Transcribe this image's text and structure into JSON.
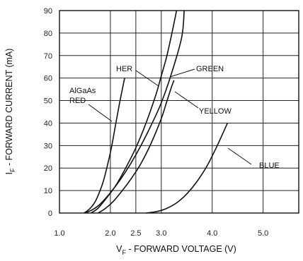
{
  "chart_data": {
    "type": "line",
    "xlabel": {
      "main": "V",
      "sub": "F",
      "rest": " - FORWARD VOLTAGE (V)"
    },
    "ylabel": {
      "main": "I",
      "sub": "F",
      "rest": " - FORWARD CURRENT (mA)"
    },
    "xlim": [
      1.0,
      5.7
    ],
    "ylim": [
      0,
      90
    ],
    "x_ticks": [
      {
        "value": 1.0,
        "label": "1.0"
      },
      {
        "value": 2.0,
        "label": "2.0"
      },
      {
        "value": 2.5,
        "label": "2.5"
      },
      {
        "value": 3.0,
        "label": "3.0"
      },
      {
        "value": 4.0,
        "label": "4.0"
      },
      {
        "value": 5.0,
        "label": "5.0"
      }
    ],
    "y_ticks": [
      0,
      10,
      20,
      30,
      40,
      50,
      60,
      70,
      80,
      90
    ],
    "series": [
      {
        "name": "AlGaAs RED",
        "x": [
          1.48,
          1.55,
          1.62,
          1.7,
          1.78,
          1.86,
          1.94,
          2.02,
          2.1,
          2.19,
          2.28
        ],
        "y": [
          0,
          1,
          2.5,
          5,
          9,
          14,
          21,
          29,
          39,
          50,
          60
        ]
      },
      {
        "name": "HER",
        "x": [
          1.5,
          1.65,
          1.8,
          2.0,
          2.2,
          2.4,
          2.6,
          2.8,
          3.0,
          3.2,
          3.4,
          3.45
        ],
        "y": [
          0,
          1.5,
          4,
          9,
          15,
          22,
          30,
          39,
          49,
          62,
          78,
          90
        ]
      },
      {
        "name": "GREEN",
        "x": [
          1.62,
          1.75,
          1.9,
          2.1,
          2.3,
          2.5,
          2.7,
          2.9,
          3.0,
          3.1,
          3.2,
          3.3
        ],
        "y": [
          0,
          2,
          6,
          12,
          20,
          29,
          40,
          53,
          61,
          69,
          79,
          90
        ]
      },
      {
        "name": "YELLOW",
        "x": [
          1.76,
          1.9,
          2.05,
          2.2,
          2.4,
          2.6,
          2.8,
          3.0,
          3.1,
          3.2,
          3.25
        ],
        "y": [
          0,
          2,
          5,
          9,
          15,
          22,
          31,
          42,
          49,
          56,
          59
        ]
      },
      {
        "name": "BLUE",
        "x": [
          2.7,
          2.9,
          3.1,
          3.3,
          3.5,
          3.7,
          3.9,
          4.1,
          4.3
        ],
        "y": [
          0,
          0.6,
          2,
          4.5,
          8.5,
          14,
          21,
          30,
          40
        ]
      }
    ],
    "annotations": [
      {
        "series": "AlGaAs RED",
        "lines": [
          "AlGaAs",
          "RED"
        ]
      },
      {
        "series": "HER",
        "lines": [
          "HER"
        ]
      },
      {
        "series": "GREEN",
        "lines": [
          "GREEN"
        ]
      },
      {
        "series": "YELLOW",
        "lines": [
          "YELLOW"
        ]
      },
      {
        "series": "BLUE",
        "lines": [
          "BLUE"
        ]
      }
    ],
    "grid": true,
    "legend": "none"
  }
}
